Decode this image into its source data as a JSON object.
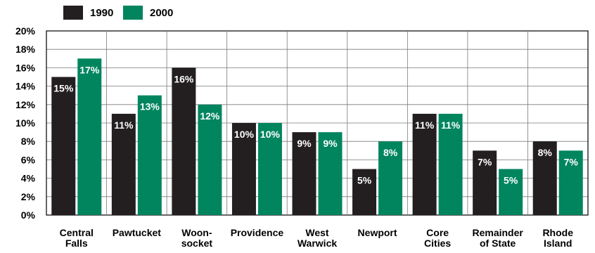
{
  "chart_data": {
    "type": "bar",
    "categories": [
      [
        "Central",
        "Falls"
      ],
      [
        "Pawtucket"
      ],
      [
        "Woon-",
        "socket"
      ],
      [
        "Providence"
      ],
      [
        "West",
        "Warwick"
      ],
      [
        "Newport"
      ],
      [
        "Core",
        "Cities"
      ],
      [
        "Remainder",
        "of State"
      ],
      [
        "Rhode",
        "Island"
      ]
    ],
    "series": [
      {
        "name": "1990",
        "values": [
          15,
          11,
          16,
          10,
          9,
          5,
          11,
          7,
          8
        ],
        "labels": [
          "15%",
          "11%",
          "16%",
          "10%",
          "9%",
          "5%",
          "11%",
          "7%",
          "8%"
        ],
        "color": "#231f20"
      },
      {
        "name": "2000",
        "values": [
          17,
          13,
          12,
          10,
          9,
          8,
          11,
          5,
          7
        ],
        "labels": [
          "17%",
          "13%",
          "12%",
          "10%",
          "9%",
          "8%",
          "11%",
          "5%",
          "7%"
        ],
        "color": "#00855f"
      }
    ],
    "y_ticks": [
      "0%",
      "2%",
      "4%",
      "6%",
      "8%",
      "10%",
      "12%",
      "14%",
      "16%",
      "18%",
      "20%"
    ],
    "ylim": [
      0,
      20
    ],
    "grid": "horizontal",
    "legend_position": "top-left"
  }
}
